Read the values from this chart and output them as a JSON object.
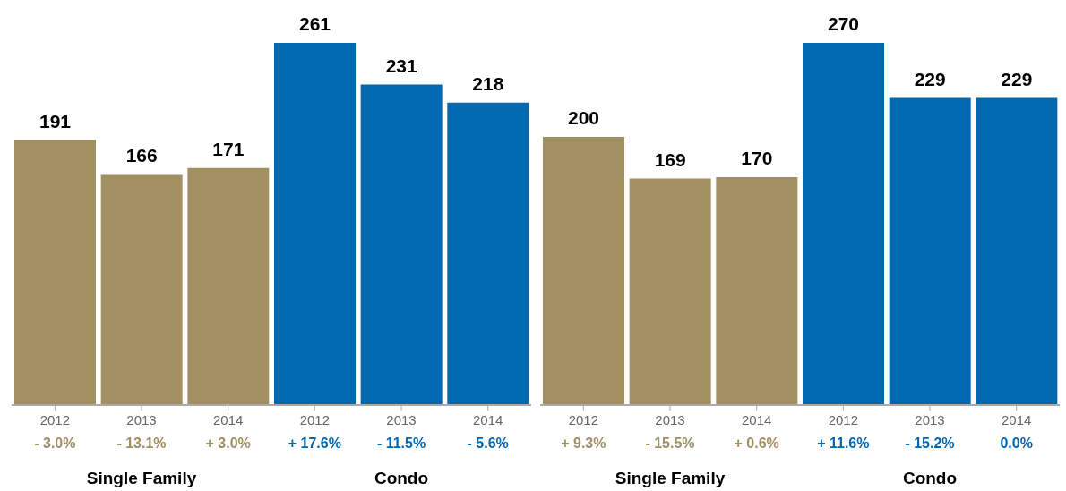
{
  "chart_data": [
    {
      "type": "bar",
      "categories": [
        "2012",
        "2013",
        "2014",
        "2012",
        "2013",
        "2014"
      ],
      "values": [
        191,
        166,
        171,
        261,
        231,
        218
      ],
      "colors": [
        "#a39062",
        "#a39062",
        "#a39062",
        "#0067b1",
        "#0067b1",
        "#0067b1"
      ],
      "data_labels": true,
      "annotations": [
        "- 3.0%",
        "- 13.1%",
        "+ 3.0%",
        "+ 17.6%",
        "- 11.5%",
        "- 5.6%",
        "Single Family",
        "Condo"
      ]
    },
    {
      "type": "bar",
      "categories": [
        "2012",
        "2013",
        "2014",
        "2012",
        "2013",
        "2014"
      ],
      "values": [
        200,
        169,
        170,
        270,
        229,
        229
      ],
      "colors": [
        "#a39062",
        "#a39062",
        "#a39062",
        "#0067b1",
        "#0067b1",
        "#0067b1"
      ],
      "data_labels": true,
      "annotations": [
        "+ 9.3%",
        "- 15.5%",
        "+ 0.6%",
        "+ 11.6%",
        "- 15.2%",
        "0.0%",
        "Single Family",
        "Condo"
      ]
    }
  ]
}
